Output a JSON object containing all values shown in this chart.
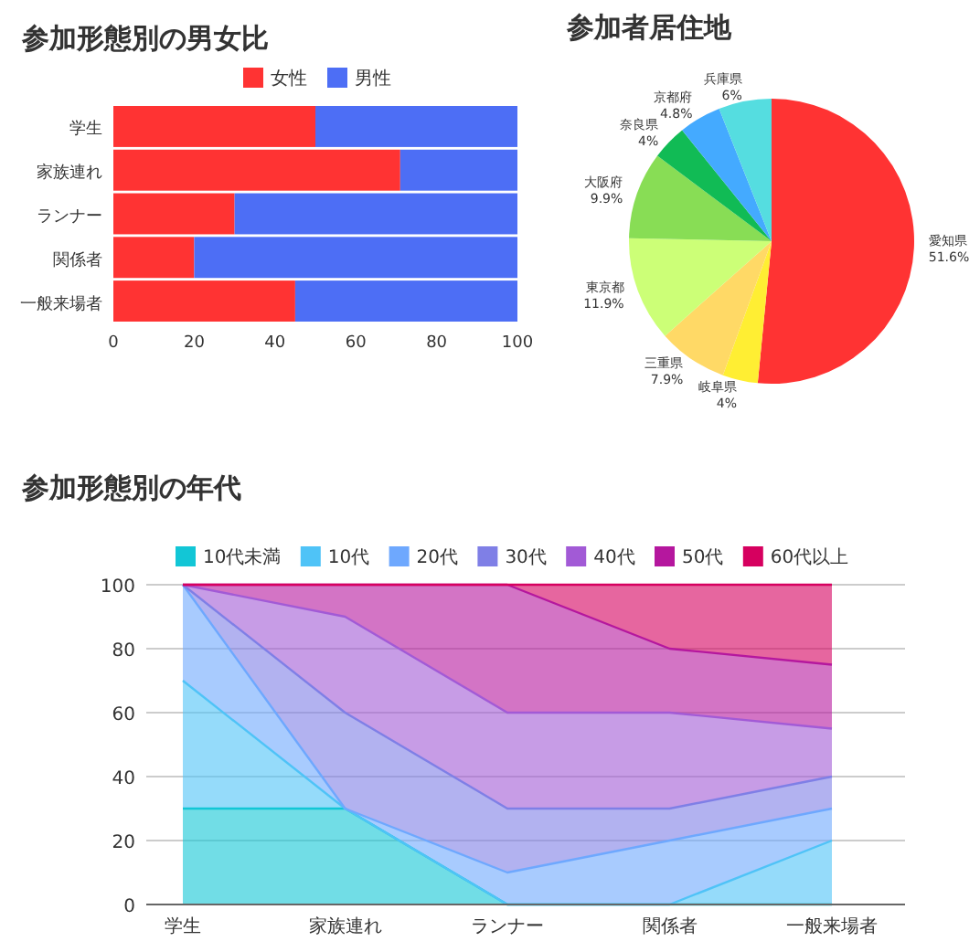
{
  "chart_data": [
    {
      "type": "bar",
      "title": "参加形態別の男女比",
      "orientation": "horizontal",
      "stacked": true,
      "categories": [
        "学生",
        "家族連れ",
        "ランナー",
        "関係者",
        "一般来場者"
      ],
      "series": [
        {
          "name": "女性",
          "color": "#ff3333",
          "values": [
            50,
            71,
            30,
            20,
            45
          ]
        },
        {
          "name": "男性",
          "color": "#4d6ef5",
          "values": [
            50,
            29,
            70,
            80,
            55
          ]
        }
      ],
      "xlim": [
        0,
        100
      ],
      "xticks": [
        0,
        20,
        40,
        60,
        80,
        100
      ],
      "legend": "top"
    },
    {
      "type": "pie",
      "title": "参加者居住地",
      "categories": [
        "愛知県",
        "岐阜県",
        "三重県",
        "東京都",
        "大阪府",
        "奈良県",
        "京都府",
        "兵庫県"
      ],
      "values": [
        51.6,
        4,
        7.9,
        11.9,
        9.9,
        4,
        4.8,
        6
      ],
      "colors": [
        "#ff3333",
        "#ffee33",
        "#ffd966",
        "#ccff77",
        "#88dd55",
        "#11bb55",
        "#44aaff",
        "#55dde0"
      ],
      "value_labels": [
        "51.6%",
        "4%",
        "7.9%",
        "11.9%",
        "9.9%",
        "4%",
        "4.8%",
        "6%"
      ]
    },
    {
      "type": "area",
      "title": "参加形態別の年代",
      "stacked": true,
      "categories": [
        "学生",
        "家族連れ",
        "ランナー",
        "関係者",
        "一般来場者"
      ],
      "series": [
        {
          "name": "10代未満",
          "color": "#12c6d6",
          "values": [
            30,
            30,
            0,
            0,
            0
          ]
        },
        {
          "name": "10代",
          "color": "#4fc3f7",
          "values": [
            40,
            0,
            0,
            0,
            20
          ]
        },
        {
          "name": "20代",
          "color": "#6ea8fe",
          "values": [
            30,
            0,
            10,
            20,
            10
          ]
        },
        {
          "name": "30代",
          "color": "#7f7fe6",
          "values": [
            0,
            30,
            20,
            10,
            10
          ]
        },
        {
          "name": "40代",
          "color": "#a25ad6",
          "values": [
            0,
            30,
            30,
            30,
            15
          ]
        },
        {
          "name": "50代",
          "color": "#b5179e",
          "values": [
            0,
            10,
            40,
            20,
            20
          ]
        },
        {
          "name": "60代以上",
          "color": "#d6005f",
          "values": [
            0,
            0,
            0,
            20,
            25
          ]
        }
      ],
      "ylim": [
        0,
        100
      ],
      "yticks": [
        0,
        20,
        40,
        60,
        80,
        100
      ],
      "grid": "y",
      "legend": "top"
    }
  ]
}
